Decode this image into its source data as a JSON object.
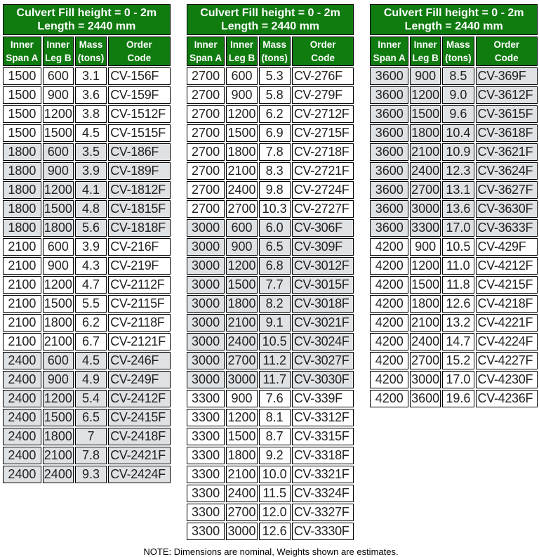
{
  "note": "NOTE: Dimensions are nominal, Weights shown are estimates.",
  "colors": {
    "header_green": "#107c10",
    "header_text": "#ffffff",
    "band_gray": "#dfe2e5",
    "row_white": "#ffffff",
    "data_text": "#222222",
    "border": "#000000"
  },
  "tables": [
    {
      "title": "Culvert Fill height = 0 - 2m\nLength = 2440 mm",
      "columns": [
        "Inner\nSpan A",
        "Inner\nLeg B",
        "Mass\n(tons)",
        "Order\nCode"
      ],
      "rows": [
        [
          "1500",
          "600",
          "3.1",
          "CV-156F"
        ],
        [
          "1500",
          "900",
          "3.6",
          "CV-159F"
        ],
        [
          "1500",
          "1200",
          "3.8",
          "CV-1512F"
        ],
        [
          "1500",
          "1500",
          "4.5",
          "CV-1515F"
        ],
        [
          "1800",
          "600",
          "3.5",
          "CV-186F"
        ],
        [
          "1800",
          "900",
          "3.9",
          "CV-189F"
        ],
        [
          "1800",
          "1200",
          "4.1",
          "CV-1812F"
        ],
        [
          "1800",
          "1500",
          "4.8",
          "CV-1815F"
        ],
        [
          "1800",
          "1800",
          "5.6",
          "CV-1818F"
        ],
        [
          "2100",
          "600",
          "3.9",
          "CV-216F"
        ],
        [
          "2100",
          "900",
          "4.3",
          "CV-219F"
        ],
        [
          "2100",
          "1200",
          "4.7",
          "CV-2112F"
        ],
        [
          "2100",
          "1500",
          "5.5",
          "CV-2115F"
        ],
        [
          "2100",
          "1800",
          "6.2",
          "CV-2118F"
        ],
        [
          "2100",
          "2100",
          "6.7",
          "CV-2121F"
        ],
        [
          "2400",
          "600",
          "4.5",
          "CV-246F"
        ],
        [
          "2400",
          "900",
          "4.9",
          "CV-249F"
        ],
        [
          "2400",
          "1200",
          "5.4",
          "CV-2412F"
        ],
        [
          "2400",
          "1500",
          "6.5",
          "CV-2415F"
        ],
        [
          "2400",
          "1800",
          "7",
          "CV-2418F"
        ],
        [
          "2400",
          "2100",
          "7.8",
          "CV-2421F"
        ],
        [
          "2400",
          "2400",
          "9.3",
          "CV-2424F"
        ]
      ]
    },
    {
      "title": "Culvert Fill height = 0 - 2m\nLength = 2440 mm",
      "columns": [
        "Inner\nSpan A",
        "Inner\nLeg B",
        "Mass\n(tons)",
        "Order\nCode"
      ],
      "rows": [
        [
          "2700",
          "600",
          "5.3",
          "CV-276F"
        ],
        [
          "2700",
          "900",
          "5.8",
          "CV-279F"
        ],
        [
          "2700",
          "1200",
          "6.2",
          "CV-2712F"
        ],
        [
          "2700",
          "1500",
          "6.9",
          "CV-2715F"
        ],
        [
          "2700",
          "1800",
          "7.8",
          "CV-2718F"
        ],
        [
          "2700",
          "2100",
          "8.3",
          "CV-2721F"
        ],
        [
          "2700",
          "2400",
          "9.8",
          "CV-2724F"
        ],
        [
          "2700",
          "2700",
          "10.3",
          "CV-2727F"
        ],
        [
          "3000",
          "600",
          "6.0",
          "CV-306F"
        ],
        [
          "3000",
          "900",
          "6.5",
          "CV-309F"
        ],
        [
          "3000",
          "1200",
          "6.8",
          "CV-3012F"
        ],
        [
          "3000",
          "1500",
          "7.7",
          "CV-3015F"
        ],
        [
          "3000",
          "1800",
          "8.2",
          "CV-3018F"
        ],
        [
          "3000",
          "2100",
          "9.1",
          "CV-3021F"
        ],
        [
          "3000",
          "2400",
          "10.5",
          "CV-3024F"
        ],
        [
          "3000",
          "2700",
          "11.2",
          "CV-3027F"
        ],
        [
          "3000",
          "3000",
          "11.7",
          "CV-3030F"
        ],
        [
          "3300",
          "900",
          "7.6",
          "CV-339F"
        ],
        [
          "3300",
          "1200",
          "8.1",
          "CV-3312F"
        ],
        [
          "3300",
          "1500",
          "8.7",
          "CV-3315F"
        ],
        [
          "3300",
          "1800",
          "9.2",
          "CV-3318F"
        ],
        [
          "3300",
          "2100",
          "10.0",
          "CV-3321F"
        ],
        [
          "3300",
          "2400",
          "11.5",
          "CV-3324F"
        ],
        [
          "3300",
          "2700",
          "12.0",
          "CV-3327F"
        ],
        [
          "3300",
          "3000",
          "12.6",
          "CV-3330F"
        ]
      ]
    },
    {
      "title": "Culvert Fill height = 0 - 2m\nLength = 2440 mm",
      "columns": [
        "Inner\nSpan A",
        "Inner\nLeg B",
        "Mass\n(tons)",
        "Order\nCode"
      ],
      "rows": [
        [
          "3600",
          "900",
          "8.5",
          "CV-369F"
        ],
        [
          "3600",
          "1200",
          "9.0",
          "CV-3612F"
        ],
        [
          "3600",
          "1500",
          "9.6",
          "CV-3615F"
        ],
        [
          "3600",
          "1800",
          "10.4",
          "CV-3618F"
        ],
        [
          "3600",
          "2100",
          "10.9",
          "CV-3621F"
        ],
        [
          "3600",
          "2400",
          "12.3",
          "CV-3624F"
        ],
        [
          "3600",
          "2700",
          "13.1",
          "CV-3627F"
        ],
        [
          "3600",
          "3000",
          "13.6",
          "CV-3630F"
        ],
        [
          "3600",
          "3300",
          "17.0",
          "CV-3633F"
        ],
        [
          "4200",
          "900",
          "10.5",
          "CV-429F"
        ],
        [
          "4200",
          "1200",
          "11.0",
          "CV-4212F"
        ],
        [
          "4200",
          "1500",
          "11.8",
          "CV-4215F"
        ],
        [
          "4200",
          "1800",
          "12.6",
          "CV-4218F"
        ],
        [
          "4200",
          "2100",
          "13.2",
          "CV-4221F"
        ],
        [
          "4200",
          "2400",
          "14.7",
          "CV-4224F"
        ],
        [
          "4200",
          "2700",
          "15.2",
          "CV-4227F"
        ],
        [
          "4200",
          "3000",
          "17.0",
          "CV-4230F"
        ],
        [
          "4200",
          "3600",
          "19.6",
          "CV-4236F"
        ]
      ]
    }
  ]
}
